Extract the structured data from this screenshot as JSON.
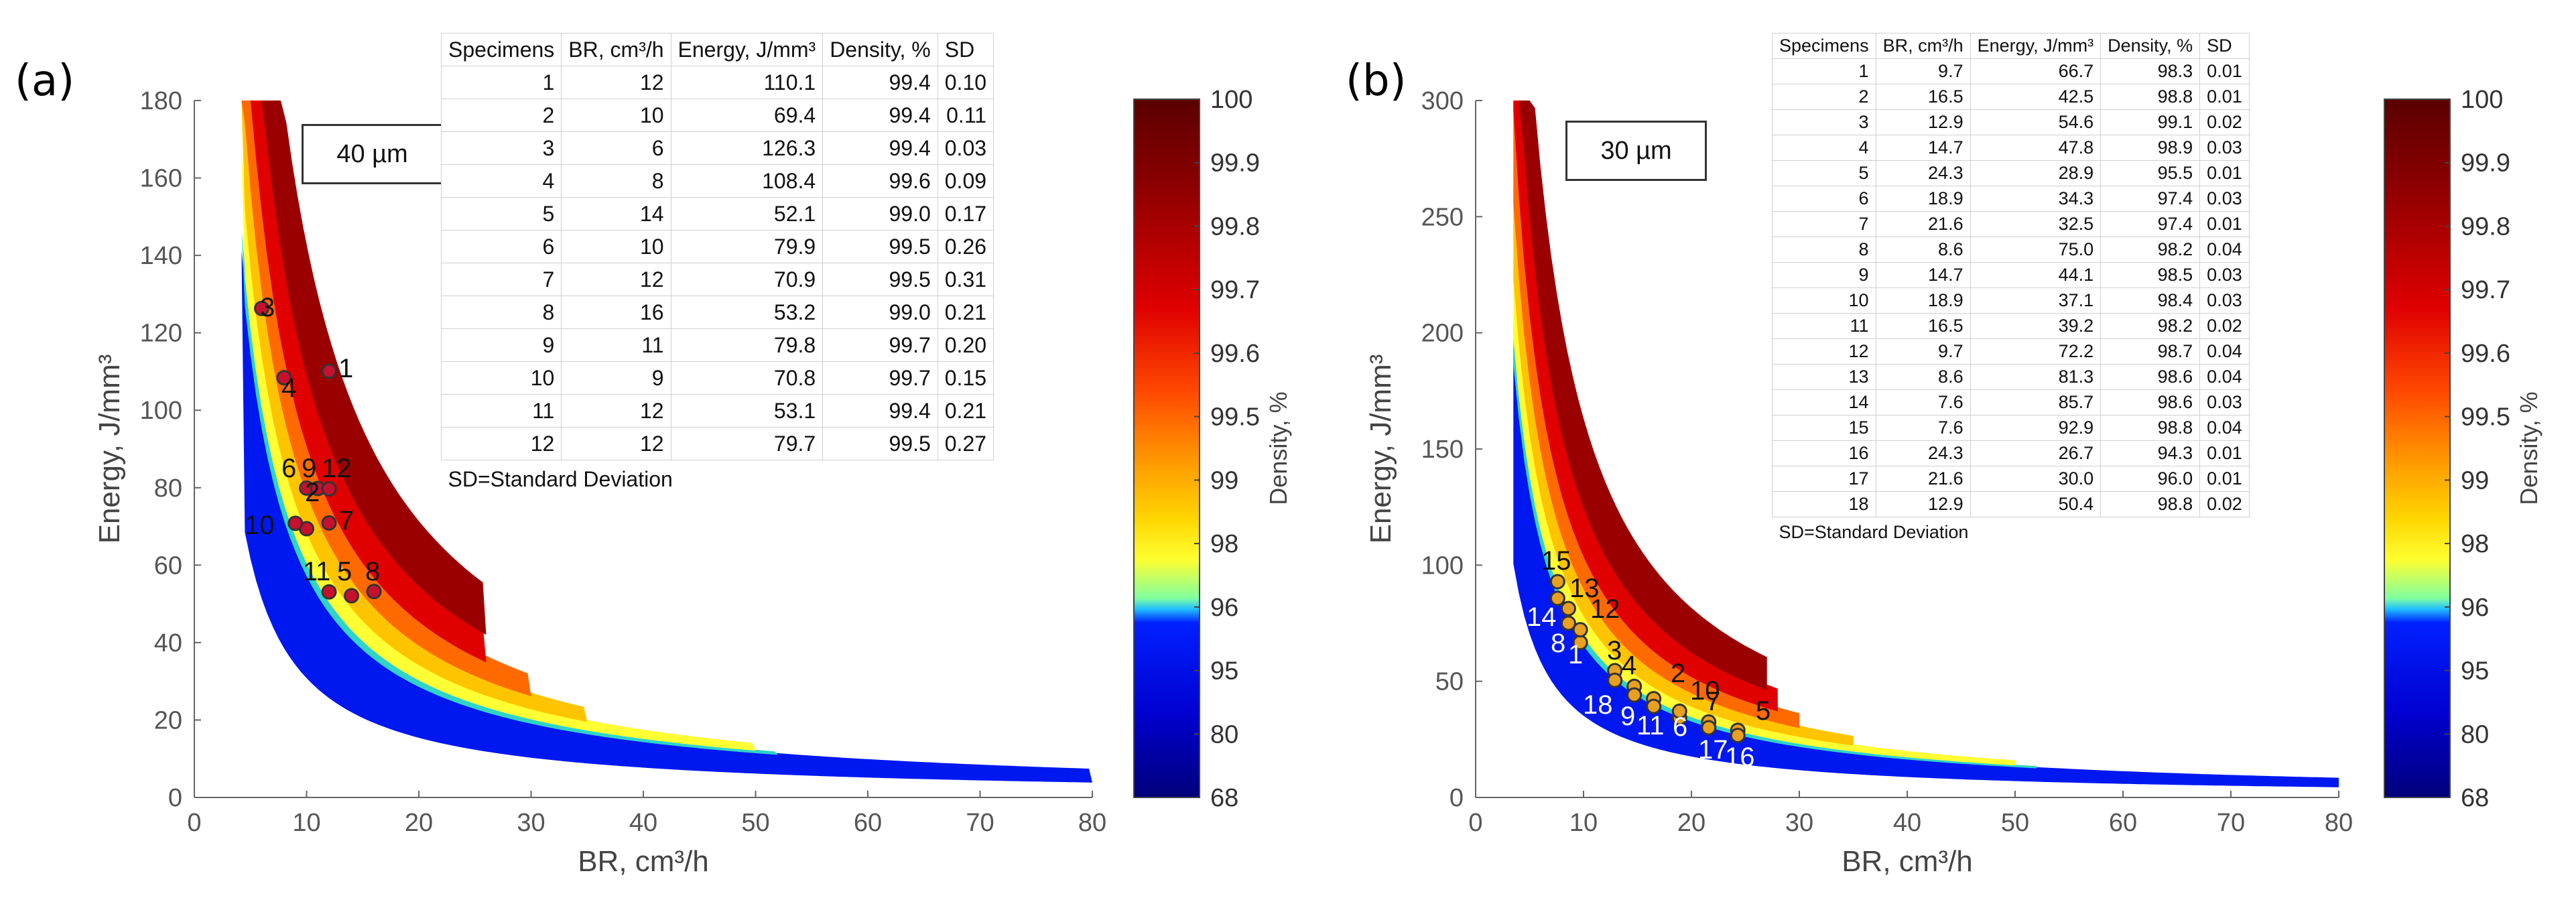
{
  "chart_data": [
    {
      "type": "scatter",
      "panel": "(a)",
      "annotation": "40 µm",
      "xlabel": "BR, cm³/h",
      "ylabel": "Energy, J/mm³",
      "xlim": [
        0,
        80
      ],
      "ylim": [
        0,
        180
      ],
      "xticks": [
        0,
        10,
        20,
        30,
        40,
        50,
        60,
        70,
        80
      ],
      "yticks": [
        0,
        20,
        40,
        60,
        80,
        100,
        120,
        140,
        160,
        180
      ],
      "colorbar": {
        "label": "Density, %",
        "ticks": [
          100,
          99.9,
          99.8,
          99.7,
          99.6,
          99.5,
          99,
          98,
          96,
          95,
          80,
          68
        ]
      },
      "table": {
        "headers": [
          "Specimens",
          "BR, cm³/h",
          "Energy, J/mm³",
          "Density, %",
          "SD"
        ],
        "rows": [
          [
            "1",
            "12",
            "110.1",
            "99.4",
            "0.10"
          ],
          [
            "2",
            "10",
            "69.4",
            "99.4",
            "0.11"
          ],
          [
            "3",
            "6",
            "126.3",
            "99.4",
            "0.03"
          ],
          [
            "4",
            "8",
            "108.4",
            "99.6",
            "0.09"
          ],
          [
            "5",
            "14",
            "52.1",
            "99.0",
            "0.17"
          ],
          [
            "6",
            "10",
            "79.9",
            "99.5",
            "0.26"
          ],
          [
            "7",
            "12",
            "70.9",
            "99.5",
            "0.31"
          ],
          [
            "8",
            "16",
            "53.2",
            "99.0",
            "0.21"
          ],
          [
            "9",
            "11",
            "79.8",
            "99.7",
            "0.20"
          ],
          [
            "10",
            "9",
            "70.8",
            "99.7",
            "0.15"
          ],
          [
            "11",
            "12",
            "53.1",
            "99.4",
            "0.21"
          ],
          [
            "12",
            "12",
            "79.7",
            "99.5",
            "0.27"
          ]
        ],
        "note": "SD=Standard Deviation"
      },
      "labels": [
        "1",
        "2",
        "3",
        "4",
        "5",
        "6",
        "7",
        "8",
        "9",
        "10",
        "11",
        "12"
      ]
    },
    {
      "type": "scatter",
      "panel": "(b)",
      "annotation": "30 µm",
      "xlabel": "BR, cm³/h",
      "ylabel": "Energy, J/mm³",
      "xlim": [
        0,
        80
      ],
      "ylim": [
        0,
        300
      ],
      "xticks": [
        0,
        10,
        20,
        30,
        40,
        50,
        60,
        70,
        80
      ],
      "yticks": [
        0,
        50,
        100,
        150,
        200,
        250,
        300
      ],
      "colorbar": {
        "label": "Density, %",
        "ticks": [
          100,
          99.9,
          99.8,
          99.7,
          99.6,
          99.5,
          99,
          98,
          96,
          95,
          80,
          68
        ]
      },
      "table": {
        "headers": [
          "Specimens",
          "BR, cm³/h",
          "Energy, J/mm³",
          "Density, %",
          "SD"
        ],
        "rows": [
          [
            "1",
            "9.7",
            "66.7",
            "98.3",
            "0.01"
          ],
          [
            "2",
            "16.5",
            "42.5",
            "98.8",
            "0.01"
          ],
          [
            "3",
            "12.9",
            "54.6",
            "99.1",
            "0.02"
          ],
          [
            "4",
            "14.7",
            "47.8",
            "98.9",
            "0.03"
          ],
          [
            "5",
            "24.3",
            "28.9",
            "95.5",
            "0.01"
          ],
          [
            "6",
            "18.9",
            "34.3",
            "97.4",
            "0.03"
          ],
          [
            "7",
            "21.6",
            "32.5",
            "97.4",
            "0.01"
          ],
          [
            "8",
            "8.6",
            "75.0",
            "98.2",
            "0.04"
          ],
          [
            "9",
            "14.7",
            "44.1",
            "98.5",
            "0.03"
          ],
          [
            "10",
            "18.9",
            "37.1",
            "98.4",
            "0.03"
          ],
          [
            "11",
            "16.5",
            "39.2",
            "98.2",
            "0.02"
          ],
          [
            "12",
            "9.7",
            "72.2",
            "98.7",
            "0.04"
          ],
          [
            "13",
            "8.6",
            "81.3",
            "98.6",
            "0.04"
          ],
          [
            "14",
            "7.6",
            "85.7",
            "98.6",
            "0.03"
          ],
          [
            "15",
            "7.6",
            "92.9",
            "98.8",
            "0.04"
          ],
          [
            "16",
            "24.3",
            "26.7",
            "94.3",
            "0.01"
          ],
          [
            "17",
            "21.6",
            "30.0",
            "96.0",
            "0.01"
          ],
          [
            "18",
            "12.9",
            "50.4",
            "98.8",
            "0.02"
          ]
        ],
        "note": "SD=Standard Deviation"
      },
      "labels": [
        "1",
        "2",
        "3",
        "4",
        "5",
        "6",
        "7",
        "8",
        "9",
        "10",
        "11",
        "12",
        "13",
        "14",
        "15",
        "16",
        "17",
        "18"
      ]
    }
  ]
}
